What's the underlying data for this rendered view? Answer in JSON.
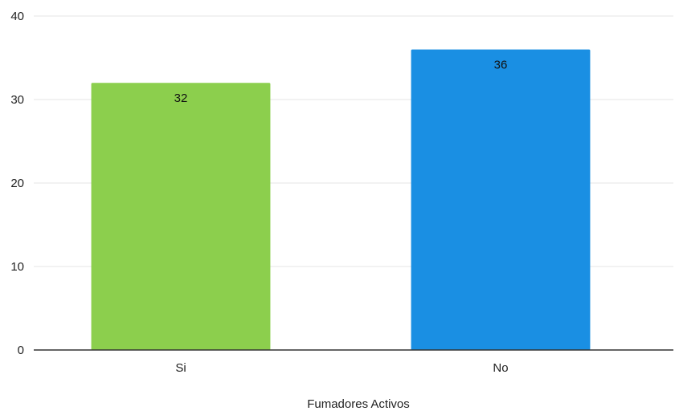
{
  "chart_data": {
    "type": "bar",
    "categories": [
      "Si",
      "No"
    ],
    "values": [
      32,
      36
    ],
    "data_labels": [
      "32",
      "36"
    ],
    "colors": [
      "#8ccf4d",
      "#1a8fe3"
    ],
    "xlabel": "Fumadores Activos",
    "ylabel": "",
    "ylim": [
      0,
      40
    ],
    "yticks": [
      0,
      10,
      20,
      30,
      40
    ],
    "grid": true,
    "legend": "none"
  }
}
